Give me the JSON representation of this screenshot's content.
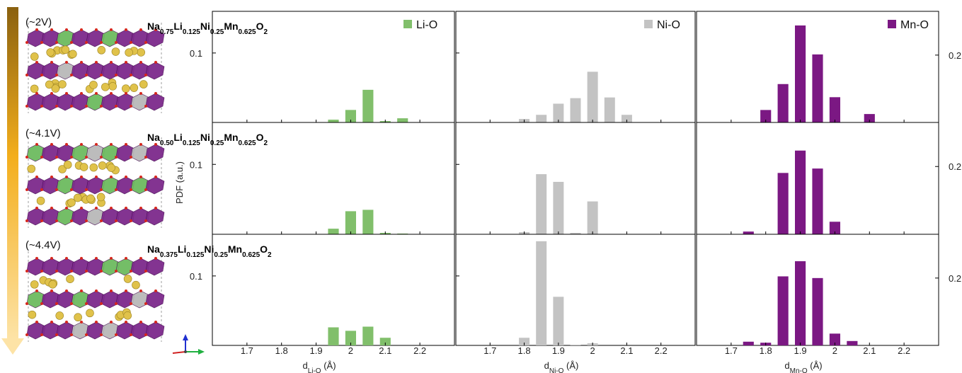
{
  "colors": {
    "li": "#81bf6b",
    "ni": "#c3c3c3",
    "mn": "#7b1883",
    "arrow_top": "#8a6110",
    "arrow_mid": "#f3ae1c",
    "arrow_bottom": "#fde3a6",
    "polyhedron_mn": "#7d2a8c",
    "polyhedron_li": "#6dbb5f",
    "polyhedron_ni": "#b9b9b9",
    "na_atom": "#e0c24a",
    "o_atom": "#d6271e"
  },
  "rows": [
    {
      "voltage": "(~2V)",
      "formula": [
        [
          "Na",
          ""
        ],
        [
          "0.75",
          "sub"
        ],
        [
          "Li",
          ""
        ],
        [
          "0.125",
          "sub"
        ],
        [
          "Ni",
          ""
        ],
        [
          "0.25",
          "sub"
        ],
        [
          "Mn",
          ""
        ],
        [
          "0.625",
          "sub"
        ],
        [
          "O",
          ""
        ],
        [
          "2",
          "sub"
        ]
      ]
    },
    {
      "voltage": "(~4.1V)",
      "formula": [
        [
          "Na",
          ""
        ],
        [
          "0.50",
          "sub"
        ],
        [
          "Li",
          ""
        ],
        [
          "0.125",
          "sub"
        ],
        [
          "Ni",
          ""
        ],
        [
          "0.25",
          "sub"
        ],
        [
          "Mn",
          ""
        ],
        [
          "0.625",
          "sub"
        ],
        [
          "O",
          ""
        ],
        [
          "2",
          "sub"
        ]
      ]
    },
    {
      "voltage": "(~4.4V)",
      "formula": [
        [
          "Na",
          ""
        ],
        [
          "0.375",
          "sub"
        ],
        [
          "Li",
          ""
        ],
        [
          "0.125",
          "sub"
        ],
        [
          "Ni",
          ""
        ],
        [
          "0.25",
          "sub"
        ],
        [
          "Mn",
          ""
        ],
        [
          "0.625",
          "sub"
        ],
        [
          "O",
          ""
        ],
        [
          "2",
          "sub"
        ]
      ]
    }
  ],
  "ylabel": "PDF (a.u.)",
  "legends": [
    "Li-O",
    "Ni-O",
    "Mn-O"
  ],
  "xlabels": [
    [
      [
        "d",
        ""
      ],
      [
        "Li-O",
        "sub"
      ],
      [
        " (Å)",
        ""
      ]
    ],
    [
      [
        "d",
        ""
      ],
      [
        "Ni-O",
        "sub"
      ],
      [
        " (Å)",
        ""
      ]
    ],
    [
      [
        "d",
        ""
      ],
      [
        "Mn-O",
        "sub"
      ],
      [
        " (Å)",
        ""
      ]
    ]
  ],
  "chart_data": {
    "type": "bar",
    "title": "",
    "ylabel": "PDF (a.u.)",
    "x_ticks": [
      "1.7",
      "1.8",
      "1.9",
      "2",
      "2.1",
      "2.2"
    ],
    "xlim": [
      1.6,
      2.3
    ],
    "bin_width": 0.05,
    "columns": [
      {
        "name": "Li-O",
        "xlabel": "d Li-O (Å)",
        "ylim": [
          0,
          0.16
        ],
        "ytick": [
          0.1,
          "0.1"
        ],
        "ytick_side": "left"
      },
      {
        "name": "Ni-O",
        "xlabel": "d Ni-O (Å)",
        "ylim": [
          0,
          0.16
        ],
        "ytick": null,
        "ytick_side": "left"
      },
      {
        "name": "Mn-O",
        "xlabel": "d Mn-O (Å)",
        "ylim": [
          0,
          0.33
        ],
        "ytick": [
          0.2,
          "0.2"
        ],
        "ytick_side": "right"
      }
    ],
    "panels": [
      [
        {
          "x": [
            1.95,
            2.0,
            2.05,
            2.1,
            2.15
          ],
          "y": [
            0.004,
            0.018,
            0.047,
            0.002,
            0.006
          ]
        },
        {
          "x": [
            1.8,
            1.85,
            1.9,
            1.95,
            2.0,
            2.05,
            2.1
          ],
          "y": [
            0.005,
            0.011,
            0.027,
            0.035,
            0.073,
            0.036,
            0.011
          ]
        },
        {
          "x": [
            1.8,
            1.85,
            1.9,
            1.95,
            2.0,
            2.1
          ],
          "y": [
            0.037,
            0.114,
            0.288,
            0.202,
            0.075,
            0.025
          ]
        }
      ],
      [
        {
          "x": [
            1.95,
            2.0,
            2.05,
            2.1,
            2.15
          ],
          "y": [
            0.008,
            0.033,
            0.035,
            0.002,
            0.001
          ]
        },
        {
          "x": [
            1.8,
            1.85,
            1.9,
            1.95,
            2.0
          ],
          "y": [
            0.003,
            0.086,
            0.075,
            0.002,
            0.047
          ]
        },
        {
          "x": [
            1.75,
            1.85,
            1.9,
            1.95,
            2.0
          ],
          "y": [
            0.008,
            0.181,
            0.247,
            0.194,
            0.037
          ]
        }
      ],
      [
        {
          "x": [
            1.95,
            2.0,
            2.05,
            2.1
          ],
          "y": [
            0.026,
            0.021,
            0.027,
            0.011
          ]
        },
        {
          "x": [
            1.8,
            1.85,
            1.9,
            1.95,
            2.0
          ],
          "y": [
            0.011,
            0.15,
            0.07,
            0.001,
            0.003
          ]
        },
        {
          "x": [
            1.75,
            1.8,
            1.85,
            1.9,
            1.95,
            2.0,
            2.05
          ],
          "y": [
            0.011,
            0.008,
            0.205,
            0.25,
            0.2,
            0.035,
            0.013
          ]
        }
      ]
    ]
  }
}
